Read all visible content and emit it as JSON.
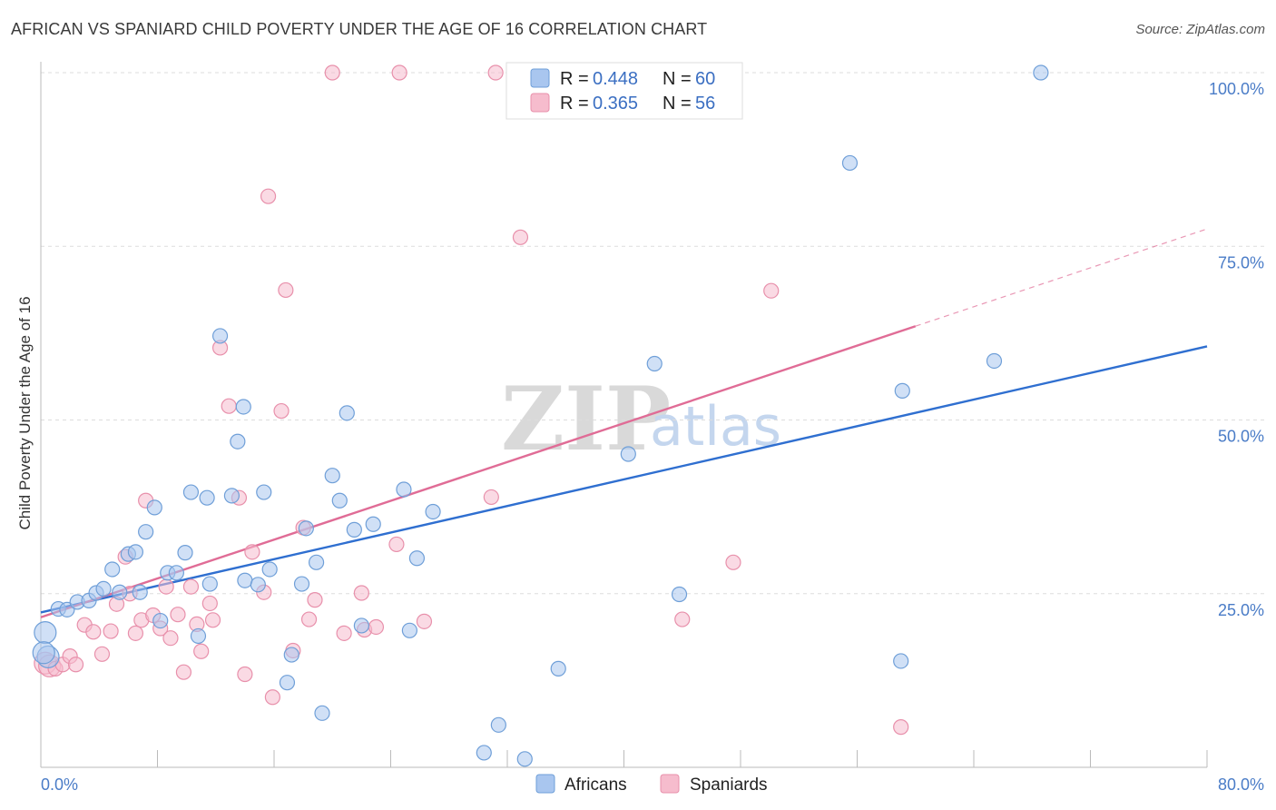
{
  "header": {
    "title": "AFRICAN VS SPANIARD CHILD POVERTY UNDER THE AGE OF 16 CORRELATION CHART",
    "source": "Source: ZipAtlas.com"
  },
  "watermark": {
    "zip": "ZIP",
    "atlas": "atlas"
  },
  "colors": {
    "africans_fill": "#a9c6ef",
    "africans_stroke": "#6f9fd8",
    "africans_line": "#2f6fd0",
    "spaniards_fill": "#f6bccd",
    "spaniards_stroke": "#e890ab",
    "spaniards_line": "#e06c96",
    "tick_label": "#4a7cc7",
    "grid": "#dddddd"
  },
  "legend": {
    "rows": [
      {
        "r_label": "R = ",
        "r_value": "0.448",
        "n_label": "N = ",
        "n_value": "60"
      },
      {
        "r_label": "R = ",
        "r_value": "0.365",
        "n_label": "N = ",
        "n_value": "56"
      }
    ]
  },
  "bottom_legend": {
    "items": [
      "Africans",
      "Spaniards"
    ]
  },
  "chart_data": {
    "type": "scatter",
    "title": "AFRICAN VS SPANIARD CHILD POVERTY UNDER THE AGE OF 16 CORRELATION CHART",
    "xlabel": "",
    "ylabel": "Child Poverty Under the Age of 16",
    "xlim": [
      0,
      80
    ],
    "ylim": [
      0,
      102
    ],
    "x_tick_labels": [
      "0.0%",
      "80.0%"
    ],
    "y_ticks": [
      25,
      50,
      75,
      100
    ],
    "y_tick_labels": [
      "25.0%",
      "50.0%",
      "75.0%",
      "100.0%"
    ],
    "grid": "horizontal dashed",
    "legend_position": "top-center",
    "series": [
      {
        "name": "Africans",
        "r": 0.448,
        "n": 60,
        "trend": {
          "x": [
            0,
            80
          ],
          "y": [
            22.3,
            60.6
          ]
        },
        "points": [
          [
            0.3,
            19.4
          ],
          [
            0.5,
            15.9
          ],
          [
            1.2,
            22.8
          ],
          [
            1.8,
            22.7
          ],
          [
            2.5,
            23.8
          ],
          [
            3.3,
            24.0
          ],
          [
            3.8,
            25.1
          ],
          [
            4.3,
            25.7
          ],
          [
            4.9,
            28.5
          ],
          [
            5.4,
            25.2
          ],
          [
            6.0,
            30.7
          ],
          [
            6.5,
            31.0
          ],
          [
            6.8,
            25.2
          ],
          [
            7.2,
            33.9
          ],
          [
            7.8,
            37.4
          ],
          [
            8.2,
            21.1
          ],
          [
            8.7,
            28.0
          ],
          [
            9.3,
            28.0
          ],
          [
            9.9,
            30.9
          ],
          [
            10.3,
            39.6
          ],
          [
            10.8,
            18.9
          ],
          [
            11.4,
            38.8
          ],
          [
            11.6,
            26.4
          ],
          [
            12.3,
            62.1
          ],
          [
            13.1,
            39.1
          ],
          [
            13.5,
            46.9
          ],
          [
            13.9,
            51.9
          ],
          [
            14.0,
            26.9
          ],
          [
            14.9,
            26.3
          ],
          [
            15.3,
            39.6
          ],
          [
            15.7,
            28.5
          ],
          [
            16.9,
            12.2
          ],
          [
            17.2,
            16.2
          ],
          [
            17.9,
            26.4
          ],
          [
            18.2,
            34.4
          ],
          [
            18.9,
            29.5
          ],
          [
            19.3,
            7.8
          ],
          [
            20.0,
            42.0
          ],
          [
            20.5,
            38.4
          ],
          [
            21.0,
            51.0
          ],
          [
            21.5,
            34.2
          ],
          [
            22.0,
            20.4
          ],
          [
            22.8,
            35.0
          ],
          [
            24.9,
            40.0
          ],
          [
            25.3,
            19.7
          ],
          [
            25.8,
            30.1
          ],
          [
            26.9,
            36.8
          ],
          [
            30.4,
            2.1
          ],
          [
            31.4,
            6.1
          ],
          [
            33.2,
            1.2
          ],
          [
            35.5,
            14.2
          ],
          [
            40.3,
            45.1
          ],
          [
            42.1,
            58.1
          ],
          [
            43.8,
            24.9
          ],
          [
            55.5,
            87.0
          ],
          [
            59.1,
            54.2
          ],
          [
            59.0,
            15.3
          ],
          [
            65.4,
            58.5
          ],
          [
            68.6,
            100.0
          ],
          [
            0.2,
            16.5
          ]
        ]
      },
      {
        "name": "Spaniards",
        "r": 0.365,
        "n": 56,
        "trend": {
          "x": [
            0,
            60
          ],
          "y": [
            21.6,
            63.5
          ]
        },
        "trend_dashed": {
          "x": [
            60,
            80
          ],
          "y": [
            63.5,
            77.5
          ]
        },
        "points": [
          [
            0.3,
            15.0
          ],
          [
            0.6,
            14.6
          ],
          [
            1.0,
            14.2
          ],
          [
            1.5,
            14.8
          ],
          [
            2.0,
            16.0
          ],
          [
            2.4,
            14.8
          ],
          [
            3.0,
            20.5
          ],
          [
            3.6,
            19.5
          ],
          [
            4.2,
            16.3
          ],
          [
            4.8,
            19.6
          ],
          [
            5.2,
            23.5
          ],
          [
            5.8,
            30.3
          ],
          [
            6.1,
            25.0
          ],
          [
            6.5,
            19.3
          ],
          [
            6.9,
            21.2
          ],
          [
            7.2,
            38.4
          ],
          [
            7.7,
            21.9
          ],
          [
            8.2,
            20.0
          ],
          [
            8.6,
            26.0
          ],
          [
            8.9,
            18.6
          ],
          [
            9.4,
            22.0
          ],
          [
            9.8,
            13.7
          ],
          [
            10.3,
            26.0
          ],
          [
            10.7,
            20.6
          ],
          [
            11.0,
            16.7
          ],
          [
            11.6,
            23.6
          ],
          [
            11.8,
            21.2
          ],
          [
            12.3,
            60.4
          ],
          [
            12.9,
            52.0
          ],
          [
            13.6,
            38.8
          ],
          [
            14.0,
            13.4
          ],
          [
            14.5,
            31.0
          ],
          [
            15.3,
            25.2
          ],
          [
            15.6,
            82.2
          ],
          [
            15.9,
            10.1
          ],
          [
            16.5,
            51.3
          ],
          [
            16.8,
            68.7
          ],
          [
            17.3,
            16.8
          ],
          [
            18.0,
            34.5
          ],
          [
            18.4,
            21.3
          ],
          [
            18.8,
            24.1
          ],
          [
            20.0,
            100.0
          ],
          [
            20.8,
            19.3
          ],
          [
            22.0,
            25.1
          ],
          [
            22.2,
            19.8
          ],
          [
            23.0,
            20.2
          ],
          [
            24.4,
            32.1
          ],
          [
            24.6,
            100.0
          ],
          [
            26.3,
            21.0
          ],
          [
            30.9,
            38.9
          ],
          [
            31.2,
            100.0
          ],
          [
            32.9,
            76.3
          ],
          [
            44.0,
            21.3
          ],
          [
            47.5,
            29.5
          ],
          [
            50.1,
            68.6
          ],
          [
            59.0,
            5.8
          ]
        ]
      }
    ]
  }
}
